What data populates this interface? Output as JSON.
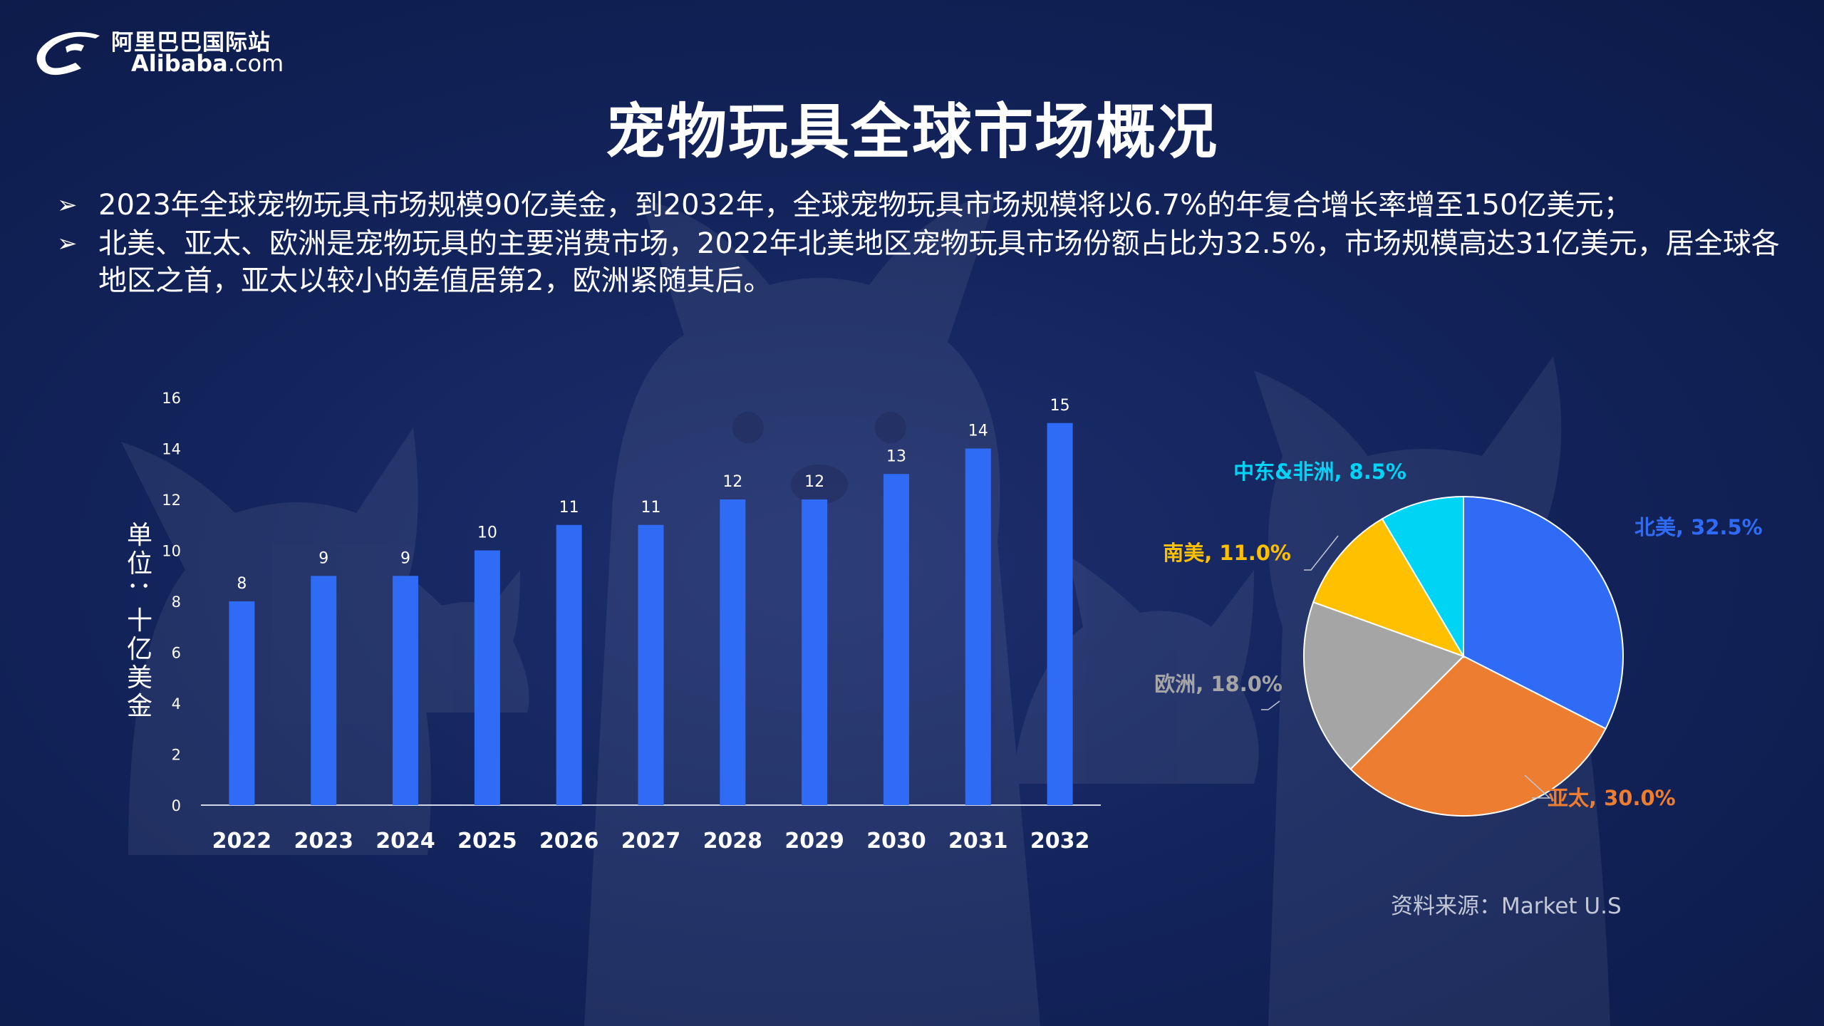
{
  "logo": {
    "cn": "阿里巴巴国际站",
    "en_bold": "Alibaba",
    "en_suffix": ".com"
  },
  "title": "宠物玩具全球市场概况",
  "bullets": [
    {
      "marker": "➢",
      "text": "2023年全球宠物玩具市场规模90亿美金，到2032年，全球宠物玩具市场规模将以6.7%的年复合增长率增至150亿美元；"
    },
    {
      "marker": "➢",
      "text": "北美、亚太、欧洲是宠物玩具的主要消费市场，2022年北美地区宠物玩具市场份额占比为32.5%，市场规模高达31亿美元，居全球各地区之首，亚太以较小的差值居第2，欧洲紧随其后。"
    }
  ],
  "source": "资料来源：Market U.S",
  "colors": {
    "background": "#13245c",
    "bar": "#2f6bf5",
    "pie_north_america": "#2f6bf5",
    "pie_asia_pacific": "#ed7d31",
    "pie_europe": "#a5a5a5",
    "pie_south_america": "#ffc000",
    "pie_mideast_africa": "#00d4f5"
  },
  "chart_data": [
    {
      "type": "bar",
      "ylabel": "单位：十亿美金",
      "categories": [
        "2022",
        "2023",
        "2024",
        "2025",
        "2026",
        "2027",
        "2028",
        "2029",
        "2030",
        "2031",
        "2032"
      ],
      "values": [
        8,
        9,
        9,
        10,
        11,
        11,
        12,
        12,
        13,
        14,
        15
      ],
      "ylim": [
        0,
        16
      ],
      "yticks": [
        0,
        2,
        4,
        6,
        8,
        10,
        12,
        14,
        16
      ],
      "grid": false,
      "data_labels": true
    },
    {
      "type": "pie",
      "slices": [
        {
          "label": "北美",
          "value": 32.5,
          "text": "北美, 32.5%",
          "color": "#2f6bf5"
        },
        {
          "label": "亚太",
          "value": 30.0,
          "text": "亚太, 30.0%",
          "color": "#ed7d31"
        },
        {
          "label": "欧洲",
          "value": 18.0,
          "text": "欧洲, 18.0%",
          "color": "#a5a5a5"
        },
        {
          "label": "南美",
          "value": 11.0,
          "text": "南美, 11.0%",
          "color": "#ffc000"
        },
        {
          "label": "中东&非洲",
          "value": 8.5,
          "text": "中东&非洲, 8.5%",
          "color": "#00d4f5"
        }
      ]
    }
  ]
}
